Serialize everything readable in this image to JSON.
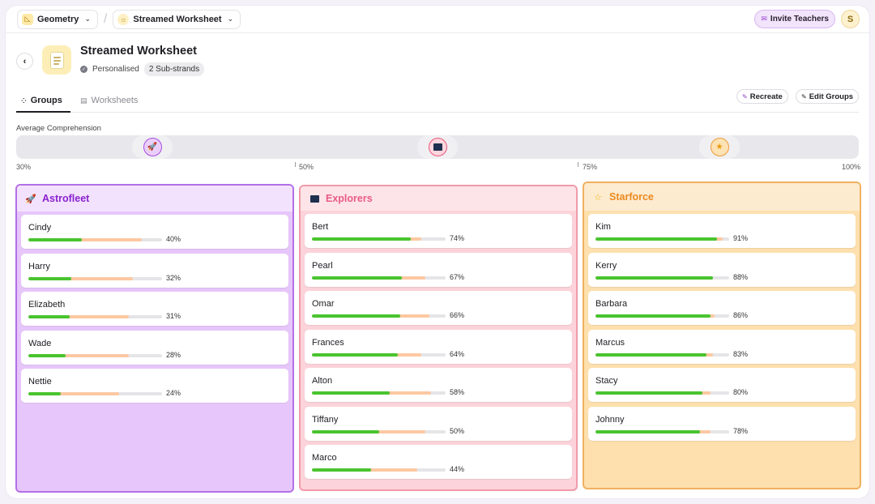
{
  "topbar": {
    "subject": "Geometry",
    "worksheet": "Streamed Worksheet",
    "invite_label": "Invite Teachers",
    "avatar_initial": "S"
  },
  "header": {
    "title": "Streamed Worksheet",
    "personalised_label": "Personalised",
    "substrands_badge": "2 Sub-strands"
  },
  "tabs": {
    "groups": "Groups",
    "worksheets": "Worksheets"
  },
  "actions": {
    "recreate": "Recreate",
    "edit_groups": "Edit Groups"
  },
  "comprehension": {
    "label": "Average Comprehension",
    "ticks": [
      "30%",
      "50%",
      "75%",
      "100%"
    ],
    "markers": [
      {
        "group": "Astrofleet",
        "icon": "rocket-icon"
      },
      {
        "group": "Explorers",
        "icon": "telescope-icon"
      },
      {
        "group": "Starforce",
        "icon": "star-icon"
      }
    ]
  },
  "colors": {
    "astrofleet_bg": "#e7c6fb",
    "astrofleet_border": "#b46fe6",
    "astrofleet_text": "#8a22d0",
    "explorers_bg": "#fcd3da",
    "explorers_border": "#f09aaa",
    "explorers_text": "#ea5b85",
    "starforce_bg": "#fde0ae",
    "starforce_border": "#f1b060",
    "starforce_text": "#ea8a1f",
    "progress_green": "#49c42f",
    "progress_peach": "#fdc8a2"
  },
  "groups": [
    {
      "name": "Astrofleet",
      "icon": "rocket-icon",
      "students": [
        {
          "name": "Cindy",
          "pct": "40%",
          "value": 40,
          "secondary": 85
        },
        {
          "name": "Harry",
          "pct": "32%",
          "value": 32,
          "secondary": 78
        },
        {
          "name": "Elizabeth",
          "pct": "31%",
          "value": 31,
          "secondary": 75
        },
        {
          "name": "Wade",
          "pct": "28%",
          "value": 28,
          "secondary": 75
        },
        {
          "name": "Nettie",
          "pct": "24%",
          "value": 24,
          "secondary": 68
        }
      ]
    },
    {
      "name": "Explorers",
      "icon": "telescope-icon",
      "students": [
        {
          "name": "Bert",
          "pct": "74%",
          "value": 74,
          "secondary": 82
        },
        {
          "name": "Pearl",
          "pct": "67%",
          "value": 67,
          "secondary": 85
        },
        {
          "name": "Omar",
          "pct": "66%",
          "value": 66,
          "secondary": 88
        },
        {
          "name": "Frances",
          "pct": "64%",
          "value": 64,
          "secondary": 82
        },
        {
          "name": "Alton",
          "pct": "58%",
          "value": 58,
          "secondary": 89
        },
        {
          "name": "Tiffany",
          "pct": "50%",
          "value": 50,
          "secondary": 85
        },
        {
          "name": "Marco",
          "pct": "44%",
          "value": 44,
          "secondary": 79
        }
      ]
    },
    {
      "name": "Starforce",
      "icon": "star-icon",
      "students": [
        {
          "name": "Kim",
          "pct": "91%",
          "value": 91,
          "secondary": 95
        },
        {
          "name": "Kerry",
          "pct": "88%",
          "value": 88,
          "secondary": 88
        },
        {
          "name": "Barbara",
          "pct": "86%",
          "value": 86,
          "secondary": 89
        },
        {
          "name": "Marcus",
          "pct": "83%",
          "value": 83,
          "secondary": 88
        },
        {
          "name": "Stacy",
          "pct": "80%",
          "value": 80,
          "secondary": 86
        },
        {
          "name": "Johnny",
          "pct": "78%",
          "value": 78,
          "secondary": 86
        }
      ]
    }
  ]
}
